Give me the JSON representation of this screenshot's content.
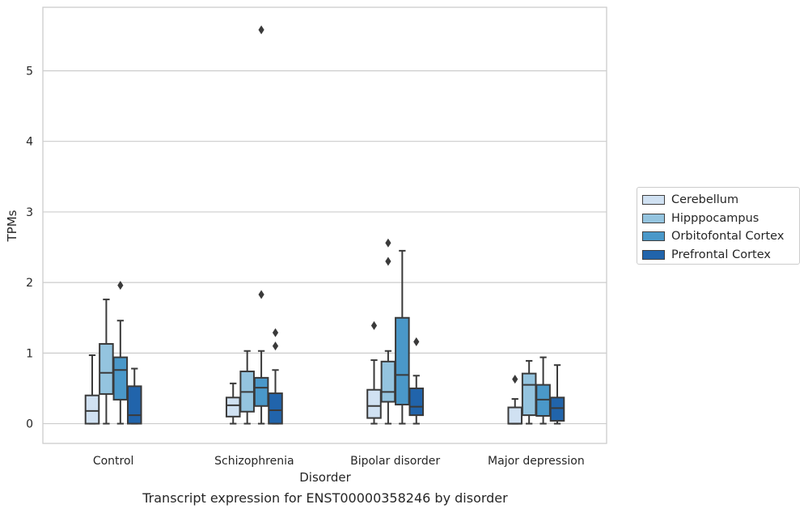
{
  "caption": "Transcript expression for ENST00000358246 by disorder",
  "chart_data": {
    "type": "boxplot",
    "title": "",
    "xlabel": "Disorder",
    "ylabel": "TPMs",
    "ylim": [
      -0.28,
      5.9
    ],
    "yticks": [
      0,
      1,
      2,
      3,
      4,
      5
    ],
    "grid": "horizontal",
    "legend_position": "outside-right",
    "categories": [
      "Control",
      "Schizophrenia",
      "Bipolar disorder",
      "Major depression"
    ],
    "series": [
      {
        "name": "Cerebellum",
        "color": "#d0e1f2",
        "boxes": [
          {
            "whislo": 0.0,
            "q1": 0.0,
            "med": 0.18,
            "q3": 0.4,
            "whishi": 0.97,
            "fliers": []
          },
          {
            "whislo": 0.0,
            "q1": 0.1,
            "med": 0.26,
            "q3": 0.37,
            "whishi": 0.57,
            "fliers": []
          },
          {
            "whislo": 0.0,
            "q1": 0.08,
            "med": 0.25,
            "q3": 0.48,
            "whishi": 0.9,
            "fliers": [
              1.39
            ]
          },
          {
            "whislo": 0.0,
            "q1": 0.0,
            "med": 0.0,
            "q3": 0.23,
            "whishi": 0.35,
            "fliers": [
              0.63
            ]
          }
        ]
      },
      {
        "name": "Hipppocampus",
        "color": "#94c4df",
        "boxes": [
          {
            "whislo": 0.0,
            "q1": 0.42,
            "med": 0.72,
            "q3": 1.13,
            "whishi": 1.76,
            "fliers": []
          },
          {
            "whislo": 0.0,
            "q1": 0.17,
            "med": 0.45,
            "q3": 0.74,
            "whishi": 1.03,
            "fliers": []
          },
          {
            "whislo": 0.0,
            "q1": 0.31,
            "med": 0.45,
            "q3": 0.88,
            "whishi": 1.03,
            "fliers": [
              2.3,
              2.56
            ]
          },
          {
            "whislo": 0.0,
            "q1": 0.12,
            "med": 0.55,
            "q3": 0.71,
            "whishi": 0.89,
            "fliers": []
          }
        ]
      },
      {
        "name": "Orbitofontal Cortex",
        "color": "#4a98c9",
        "boxes": [
          {
            "whislo": 0.0,
            "q1": 0.34,
            "med": 0.76,
            "q3": 0.94,
            "whishi": 1.46,
            "fliers": [
              1.96
            ]
          },
          {
            "whislo": 0.0,
            "q1": 0.25,
            "med": 0.51,
            "q3": 0.65,
            "whishi": 1.03,
            "fliers": [
              1.83,
              5.58
            ]
          },
          {
            "whislo": 0.0,
            "q1": 0.27,
            "med": 0.69,
            "q3": 1.5,
            "whishi": 2.45,
            "fliers": []
          },
          {
            "whislo": 0.0,
            "q1": 0.11,
            "med": 0.34,
            "q3": 0.55,
            "whishi": 0.94,
            "fliers": []
          }
        ]
      },
      {
        "name": "Prefrontal Cortex",
        "color": "#2164ab",
        "boxes": [
          {
            "whislo": 0.0,
            "q1": 0.0,
            "med": 0.12,
            "q3": 0.53,
            "whishi": 0.78,
            "fliers": []
          },
          {
            "whislo": 0.0,
            "q1": 0.0,
            "med": 0.19,
            "q3": 0.43,
            "whishi": 0.76,
            "fliers": [
              1.1,
              1.29
            ]
          },
          {
            "whislo": 0.0,
            "q1": 0.12,
            "med": 0.24,
            "q3": 0.5,
            "whishi": 0.68,
            "fliers": [
              1.16
            ]
          },
          {
            "whislo": 0.0,
            "q1": 0.04,
            "med": 0.22,
            "q3": 0.37,
            "whishi": 0.83,
            "fliers": []
          }
        ]
      }
    ]
  }
}
